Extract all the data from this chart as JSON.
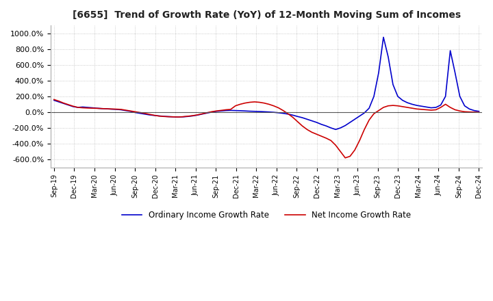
{
  "title": "[6655]  Trend of Growth Rate (YoY) of 12-Month Moving Sum of Incomes",
  "ylim": [
    -700,
    1100
  ],
  "yticks": [
    -600,
    -400,
    -200,
    0,
    200,
    400,
    600,
    800,
    1000
  ],
  "ytick_labels": [
    "-600.0%",
    "-400.0%",
    "-200.0%",
    "0.0%",
    "200.0%",
    "400.0%",
    "600.0%",
    "800.0%",
    "1000.0%"
  ],
  "background_color": "#ffffff",
  "grid_color": "#bbbbbb",
  "ordinary_color": "#0000cc",
  "net_color": "#cc0000",
  "legend_ordinary": "Ordinary Income Growth Rate",
  "legend_net": "Net Income Growth Rate",
  "xtick_labels": [
    "Sep-19",
    "Dec-19",
    "Mar-20",
    "Jun-20",
    "Sep-20",
    "Dec-20",
    "Mar-21",
    "Jun-21",
    "Sep-21",
    "Dec-21",
    "Mar-22",
    "Jun-22",
    "Sep-22",
    "Dec-22",
    "Mar-23",
    "Jun-23",
    "Sep-23",
    "Dec-23",
    "Mar-24",
    "Jun-24",
    "Sep-24",
    "Dec-24"
  ],
  "ordinary_values": [
    150,
    130,
    110,
    90,
    70,
    60,
    65,
    60,
    55,
    50,
    45,
    42,
    38,
    35,
    30,
    20,
    10,
    -5,
    -15,
    -25,
    -35,
    -42,
    -48,
    -53,
    -57,
    -60,
    -62,
    -60,
    -55,
    -48,
    -38,
    -25,
    -12,
    0,
    10,
    15,
    20,
    22,
    20,
    18,
    15,
    12,
    10,
    8,
    5,
    2,
    -2,
    -8,
    -15,
    -25,
    -38,
    -55,
    -70,
    -90,
    -110,
    -130,
    -155,
    -175,
    -200,
    -220,
    -200,
    -170,
    -130,
    -90,
    -50,
    -10,
    50,
    200,
    500,
    950,
    700,
    350,
    200,
    150,
    120,
    100,
    85,
    75,
    65,
    55,
    60,
    90,
    200,
    780,
    500,
    200,
    80,
    40,
    20,
    10
  ],
  "net_values": [
    160,
    140,
    115,
    95,
    75,
    60,
    55,
    52,
    50,
    48,
    45,
    43,
    40,
    38,
    35,
    25,
    15,
    5,
    -5,
    -15,
    -28,
    -40,
    -50,
    -55,
    -58,
    -60,
    -62,
    -58,
    -52,
    -45,
    -35,
    -22,
    -8,
    5,
    15,
    22,
    30,
    35,
    80,
    100,
    115,
    125,
    130,
    125,
    115,
    100,
    80,
    55,
    20,
    -20,
    -65,
    -120,
    -175,
    -220,
    -255,
    -280,
    -305,
    -330,
    -360,
    -420,
    -500,
    -580,
    -560,
    -480,
    -360,
    -220,
    -100,
    -20,
    20,
    60,
    80,
    85,
    80,
    70,
    60,
    50,
    40,
    35,
    30,
    25,
    30,
    60,
    100,
    60,
    30,
    15,
    5,
    2,
    0,
    -2
  ]
}
